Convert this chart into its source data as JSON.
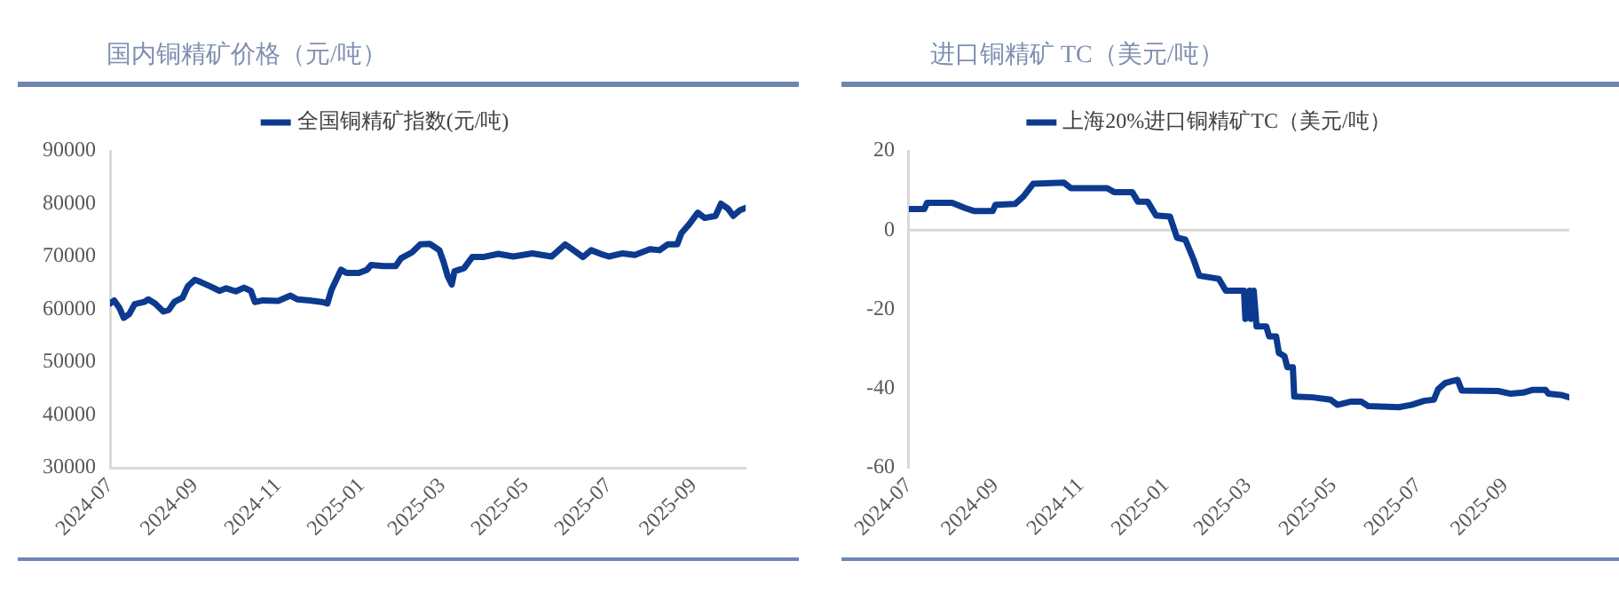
{
  "chart_data": [
    {
      "type": "line",
      "title": "国内铜精矿价格（元/吨）",
      "legend": "top",
      "grid": false,
      "marker": "none",
      "line_style": "solid",
      "xlim": [
        "2024-07-01",
        "2025-10-09"
      ],
      "xticks": [
        "2024-07",
        "2024-09",
        "2024-11",
        "2025-01",
        "2025-03",
        "2025-05",
        "2025-07",
        "2025-09"
      ],
      "ylim": [
        30000,
        90000
      ],
      "yticks": [
        30000,
        40000,
        50000,
        60000,
        70000,
        80000,
        90000
      ],
      "series": [
        {
          "name": "全国铜精矿指数(元/吨)",
          "color": "#0b3a8f",
          "x": [
            "2024-07-01",
            "2024-07-04",
            "2024-07-08",
            "2024-07-11",
            "2024-07-15",
            "2024-07-19",
            "2024-07-26",
            "2024-07-29",
            "2024-08-03",
            "2024-08-09",
            "2024-08-13",
            "2024-08-17",
            "2024-08-23",
            "2024-08-27",
            "2024-09-01",
            "2024-09-05",
            "2024-09-12",
            "2024-09-19",
            "2024-09-24",
            "2024-10-01",
            "2024-10-07",
            "2024-10-12",
            "2024-10-15",
            "2024-10-21",
            "2024-11-01",
            "2024-11-10",
            "2024-11-15",
            "2024-11-24",
            "2024-12-03",
            "2024-12-07",
            "2024-12-10",
            "2024-12-14",
            "2024-12-17",
            "2024-12-21",
            "2024-12-30",
            "2025-01-05",
            "2025-01-08",
            "2025-01-17",
            "2025-01-26",
            "2025-01-30",
            "2025-02-07",
            "2025-02-13",
            "2025-02-20",
            "2025-02-27",
            "2025-03-02",
            "2025-03-05",
            "2025-03-08",
            "2025-03-10",
            "2025-03-17",
            "2025-03-23",
            "2025-03-31",
            "2025-04-11",
            "2025-04-22",
            "2025-05-06",
            "2025-05-20",
            "2025-05-30",
            "2025-06-04",
            "2025-06-12",
            "2025-06-18",
            "2025-06-25",
            "2025-07-01",
            "2025-07-11",
            "2025-07-20",
            "2025-07-31",
            "2025-08-07",
            "2025-08-13",
            "2025-08-20",
            "2025-08-23",
            "2025-08-29",
            "2025-09-04",
            "2025-09-09",
            "2025-09-17",
            "2025-09-21",
            "2025-09-26",
            "2025-09-30",
            "2025-10-05",
            "2025-10-09"
          ],
          "values": [
            61100,
            61700,
            60200,
            58400,
            59100,
            61000,
            61400,
            61900,
            61100,
            59600,
            59900,
            61400,
            62200,
            64400,
            65600,
            65200,
            64400,
            63500,
            64000,
            63400,
            64100,
            63500,
            61400,
            61700,
            61600,
            62600,
            61900,
            61700,
            61400,
            61100,
            63700,
            65900,
            67500,
            66900,
            66900,
            67500,
            68400,
            68200,
            68200,
            69700,
            70800,
            72300,
            72400,
            71200,
            69000,
            66300,
            64700,
            67200,
            67800,
            69900,
            69900,
            70500,
            70000,
            70600,
            70000,
            72300,
            71400,
            69900,
            71200,
            70500,
            70000,
            70600,
            70300,
            71400,
            71200,
            72300,
            72300,
            74400,
            76200,
            78300,
            77300,
            77700,
            80000,
            79100,
            77700,
            78800,
            79200
          ]
        }
      ]
    },
    {
      "type": "line",
      "title": "进口铜精矿 TC（美元/吨）",
      "legend": "top",
      "grid": false,
      "marker": "none",
      "line_style": "solid",
      "xlim": [
        "2024-07-01",
        "2025-10-17"
      ],
      "xticks": [
        "2024-07",
        "2024-09",
        "2024-11",
        "2025-01",
        "2025-03",
        "2025-05",
        "2025-07",
        "2025-09"
      ],
      "ylim": [
        -60,
        20
      ],
      "yticks": [
        -60,
        -40,
        -20,
        0,
        20
      ],
      "ref_lines": [
        {
          "axis": "y",
          "value": 0,
          "color": "#d9d9d9"
        }
      ],
      "series": [
        {
          "name": "上海20%进口铜精矿TC（美元/吨）",
          "color": "#0b3a8f",
          "x": [
            "2024-07-01",
            "2024-07-12",
            "2024-07-14",
            "2024-08-01",
            "2024-08-10",
            "2024-08-17",
            "2024-08-30",
            "2024-09-01",
            "2024-09-15",
            "2024-09-21",
            "2024-09-28",
            "2024-10-20",
            "2024-10-25",
            "2024-11-20",
            "2024-11-25",
            "2024-12-08",
            "2024-12-12",
            "2024-12-19",
            "2024-12-25",
            "2025-01-04",
            "2025-01-09",
            "2025-01-15",
            "2025-01-21",
            "2025-01-25",
            "2025-02-08",
            "2025-02-13",
            "2025-02-26",
            "2025-02-27",
            "2025-03-02",
            "2025-03-03",
            "2025-03-05",
            "2025-03-07",
            "2025-03-14",
            "2025-03-16",
            "2025-03-21",
            "2025-03-23",
            "2025-03-27",
            "2025-03-29",
            "2025-04-02",
            "2025-04-03",
            "2025-04-16",
            "2025-04-29",
            "2025-05-04",
            "2025-05-13",
            "2025-05-21",
            "2025-05-26",
            "2025-06-17",
            "2025-06-26",
            "2025-07-05",
            "2025-07-12",
            "2025-07-15",
            "2025-07-20",
            "2025-07-25",
            "2025-07-29",
            "2025-08-01",
            "2025-08-27",
            "2025-09-05",
            "2025-09-14",
            "2025-09-21",
            "2025-09-30",
            "2025-10-02",
            "2025-10-11",
            "2025-10-17"
          ],
          "values": [
            5.3,
            5.3,
            6.9,
            6.9,
            5.6,
            4.8,
            4.8,
            6.4,
            6.6,
            8.5,
            11.7,
            12,
            10.6,
            10.6,
            9.6,
            9.6,
            7.2,
            7.2,
            3.7,
            3.4,
            -1.9,
            -2.4,
            -7.5,
            -11.5,
            -12.3,
            -15.3,
            -15.3,
            -22.4,
            -15.3,
            -22.4,
            -15.3,
            -24.3,
            -24.3,
            -26.8,
            -26.8,
            -31,
            -31.8,
            -34.6,
            -34.6,
            -42,
            -42.2,
            -42.8,
            -44.1,
            -43.3,
            -43.3,
            -44.4,
            -44.7,
            -44.1,
            -43.1,
            -42.8,
            -40.2,
            -38.6,
            -38.1,
            -37.8,
            -40.5,
            -40.6,
            -41.3,
            -41,
            -40.3,
            -40.3,
            -41.3,
            -41.6,
            -42.2
          ]
        }
      ]
    }
  ]
}
